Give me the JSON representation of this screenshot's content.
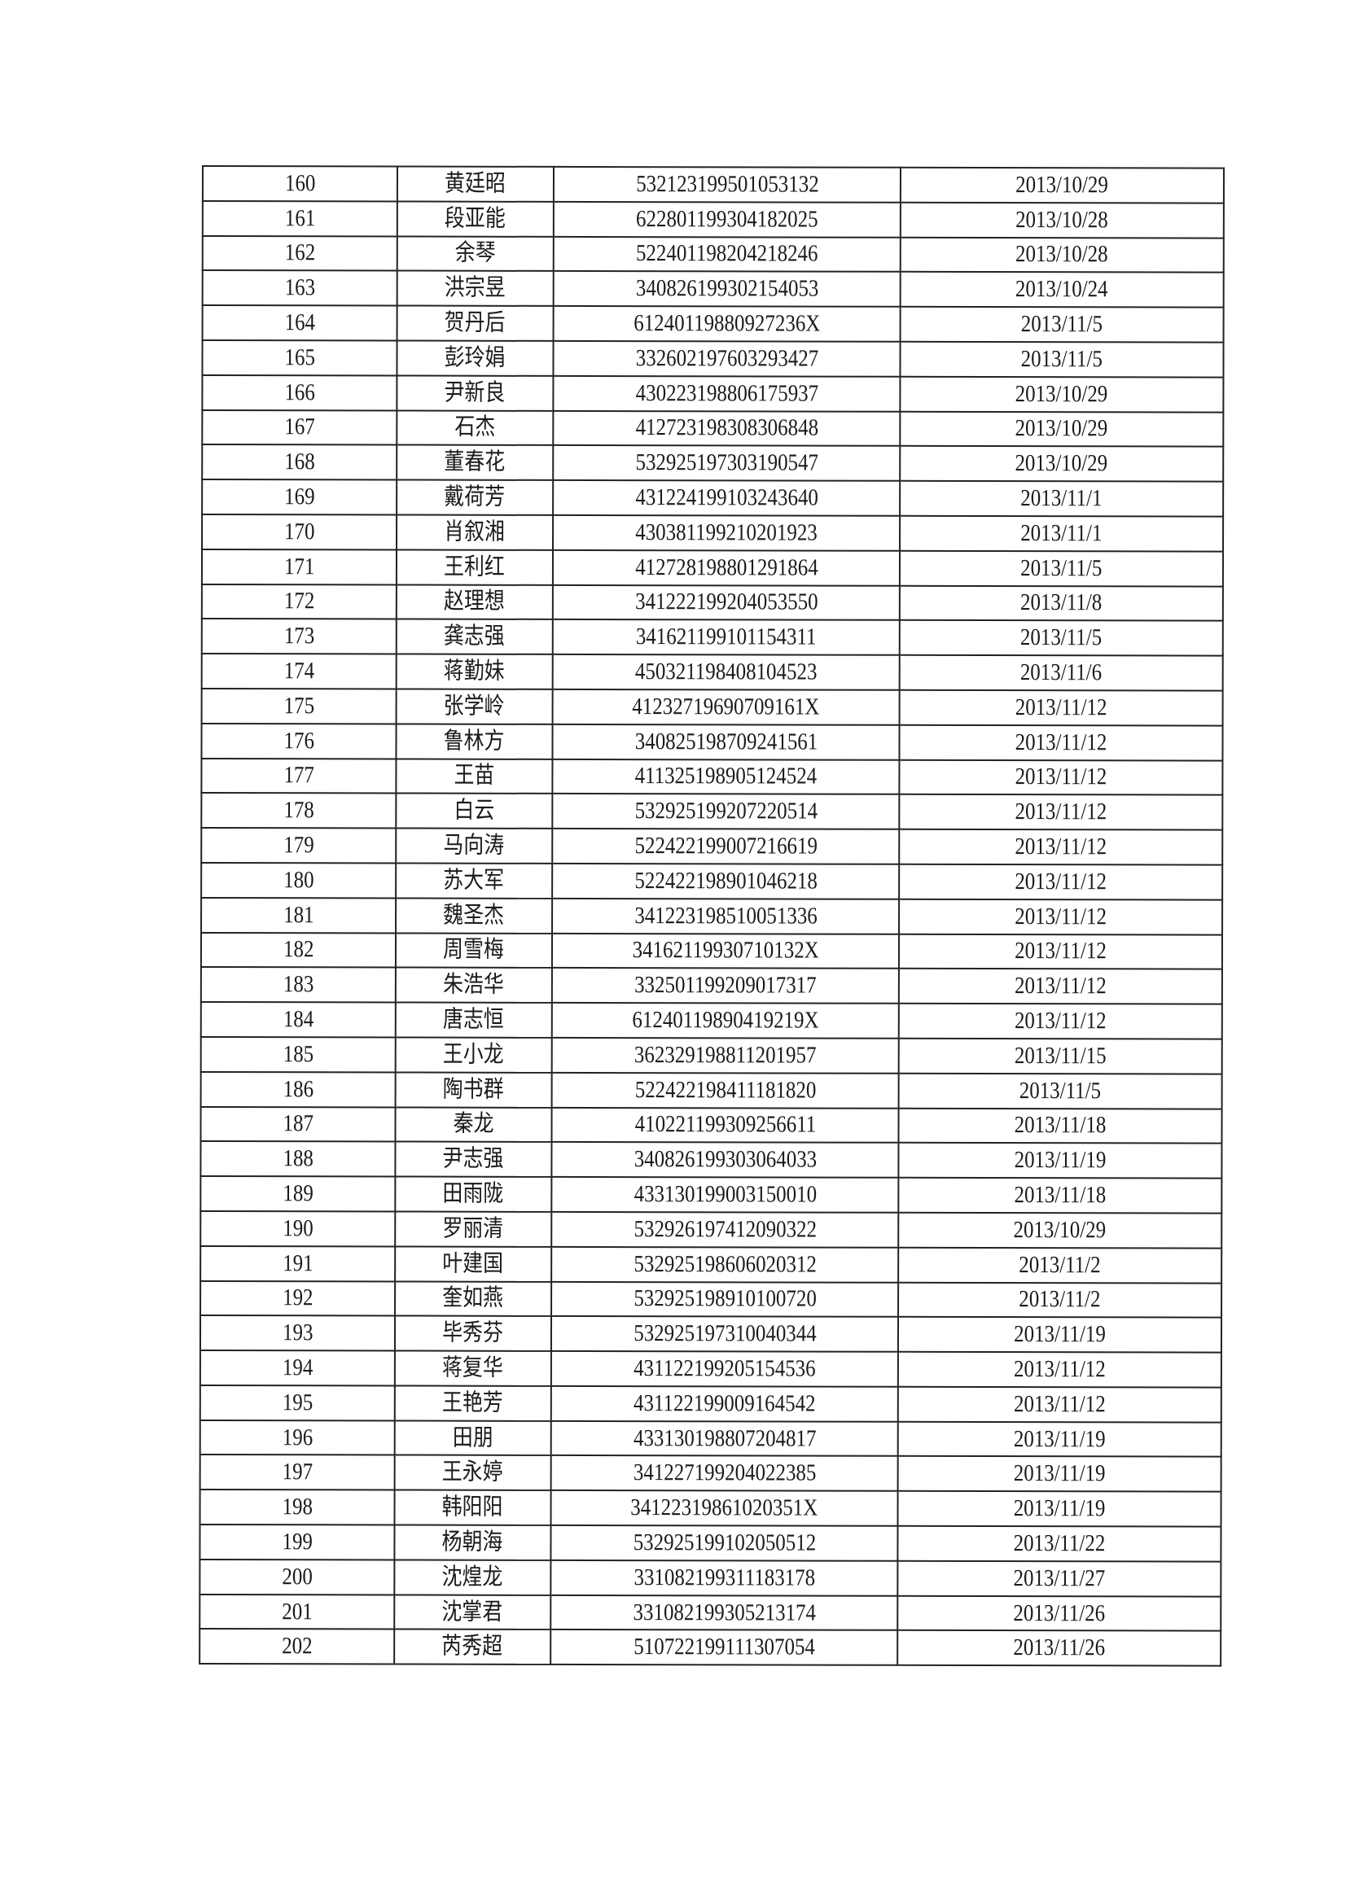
{
  "table": {
    "rows": [
      [
        "160",
        "黄廷昭",
        "532123199501053132",
        "2013/10/29"
      ],
      [
        "161",
        "段亚能",
        "622801199304182025",
        "2013/10/28"
      ],
      [
        "162",
        "余琴",
        "522401198204218246",
        "2013/10/28"
      ],
      [
        "163",
        "洪宗昱",
        "340826199302154053",
        "2013/10/24"
      ],
      [
        "164",
        "贺丹后",
        "61240119880927236X",
        "2013/11/5"
      ],
      [
        "165",
        "彭玲娟",
        "332602197603293427",
        "2013/11/5"
      ],
      [
        "166",
        "尹新良",
        "430223198806175937",
        "2013/10/29"
      ],
      [
        "167",
        "石杰",
        "412723198308306848",
        "2013/10/29"
      ],
      [
        "168",
        "董春花",
        "532925197303190547",
        "2013/10/29"
      ],
      [
        "169",
        "戴荷芳",
        "431224199103243640",
        "2013/11/1"
      ],
      [
        "170",
        "肖叙湘",
        "430381199210201923",
        "2013/11/1"
      ],
      [
        "171",
        "王利红",
        "412728198801291864",
        "2013/11/5"
      ],
      [
        "172",
        "赵理想",
        "341222199204053550",
        "2013/11/8"
      ],
      [
        "173",
        "龚志强",
        "341621199101154311",
        "2013/11/5"
      ],
      [
        "174",
        "蒋勤妹",
        "450321198408104523",
        "2013/11/6"
      ],
      [
        "175",
        "张学岭",
        "41232719690709161X",
        "2013/11/12"
      ],
      [
        "176",
        "鲁林方",
        "340825198709241561",
        "2013/11/12"
      ],
      [
        "177",
        "王苗",
        "411325198905124524",
        "2013/11/12"
      ],
      [
        "178",
        "白云",
        "532925199207220514",
        "2013/11/12"
      ],
      [
        "179",
        "马向涛",
        "522422199007216619",
        "2013/11/12"
      ],
      [
        "180",
        "苏大军",
        "522422198901046218",
        "2013/11/12"
      ],
      [
        "181",
        "魏圣杰",
        "341223198510051336",
        "2013/11/12"
      ],
      [
        "182",
        "周雪梅",
        "34162119930710132X",
        "2013/11/12"
      ],
      [
        "183",
        "朱浩华",
        "332501199209017317",
        "2013/11/12"
      ],
      [
        "184",
        "唐志恒",
        "61240119890419219X",
        "2013/11/12"
      ],
      [
        "185",
        "王小龙",
        "362329198811201957",
        "2013/11/15"
      ],
      [
        "186",
        "陶书群",
        "522422198411181820",
        "2013/11/5"
      ],
      [
        "187",
        "秦龙",
        "410221199309256611",
        "2013/11/18"
      ],
      [
        "188",
        "尹志强",
        "340826199303064033",
        "2013/11/19"
      ],
      [
        "189",
        "田雨陇",
        "433130199003150010",
        "2013/11/18"
      ],
      [
        "190",
        "罗丽清",
        "532926197412090322",
        "2013/10/29"
      ],
      [
        "191",
        "叶建国",
        "532925198606020312",
        "2013/11/2"
      ],
      [
        "192",
        "奎如燕",
        "532925198910100720",
        "2013/11/2"
      ],
      [
        "193",
        "毕秀芬",
        "532925197310040344",
        "2013/11/19"
      ],
      [
        "194",
        "蒋复华",
        "431122199205154536",
        "2013/11/12"
      ],
      [
        "195",
        "王艳芳",
        "431122199009164542",
        "2013/11/12"
      ],
      [
        "196",
        "田朋",
        "433130198807204817",
        "2013/11/19"
      ],
      [
        "197",
        "王永婷",
        "341227199204022385",
        "2013/11/19"
      ],
      [
        "198",
        "韩阳阳",
        "34122319861020351X",
        "2013/11/19"
      ],
      [
        "199",
        "杨朝海",
        "532925199102050512",
        "2013/11/22"
      ],
      [
        "200",
        "沈煌龙",
        "331082199311183178",
        "2013/11/27"
      ],
      [
        "201",
        "沈掌君",
        "331082199305213174",
        "2013/11/26"
      ],
      [
        "202",
        "芮秀超",
        "510722199111307054",
        "2013/11/26"
      ]
    ]
  }
}
